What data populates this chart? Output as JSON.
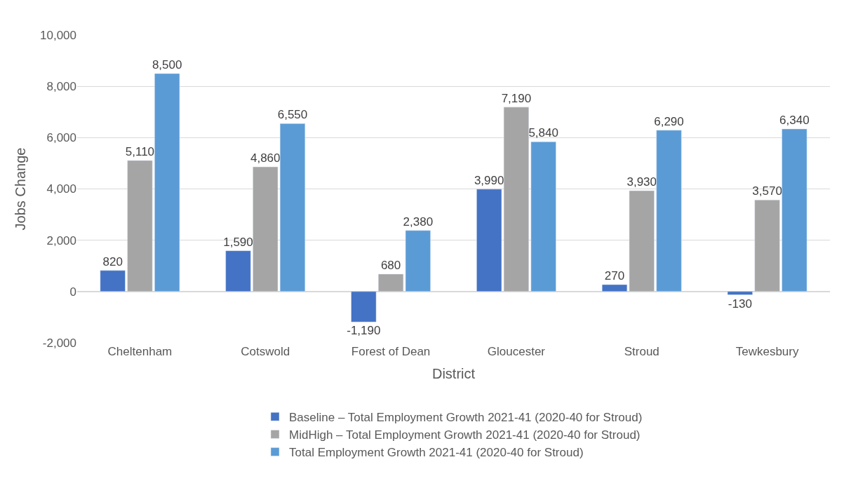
{
  "chart_data": {
    "type": "bar",
    "xlabel": "District",
    "ylabel": "Jobs Change",
    "categories": [
      "Cheltenham",
      "Cotswold",
      "Forest of Dean",
      "Gloucester",
      "Stroud",
      "Tewkesbury"
    ],
    "series": [
      {
        "name": "Baseline – Total Employment Growth 2021-41 (2020-40 for Stroud)",
        "color": "#4472c4",
        "values": [
          820,
          1590,
          -1190,
          3990,
          270,
          -130
        ],
        "value_labels": [
          "820",
          "1,590",
          "-1,190",
          "3,990",
          "270",
          "-130"
        ]
      },
      {
        "name": "MidHigh – Total Employment Growth 2021-41 (2020-40 for Stroud)",
        "color": "#a5a5a5",
        "values": [
          5110,
          4860,
          680,
          7190,
          3930,
          3570
        ],
        "value_labels": [
          "5,110",
          "4,860",
          "680",
          "7,190",
          "3,930",
          "3,570"
        ]
      },
      {
        "name": "Total Employment Growth 2021-41 (2020-40 for Stroud)",
        "color": "#5b9bd5",
        "values": [
          8500,
          6550,
          2380,
          5840,
          6290,
          6340
        ],
        "value_labels": [
          "8,500",
          "6,550",
          "2,380",
          "5,840",
          "6,290",
          "6,340"
        ]
      }
    ],
    "ylim": [
      -2000,
      10000
    ],
    "yticks": [
      {
        "value": -2000,
        "label": "-2,000"
      },
      {
        "value": 0,
        "label": "0"
      },
      {
        "value": 2000,
        "label": "2,000"
      },
      {
        "value": 4000,
        "label": "4,000"
      },
      {
        "value": 6000,
        "label": "6,000"
      },
      {
        "value": 8000,
        "label": "8,000"
      },
      {
        "value": 10000,
        "label": "10,000"
      }
    ],
    "grid": "y",
    "legend": "bottom"
  }
}
